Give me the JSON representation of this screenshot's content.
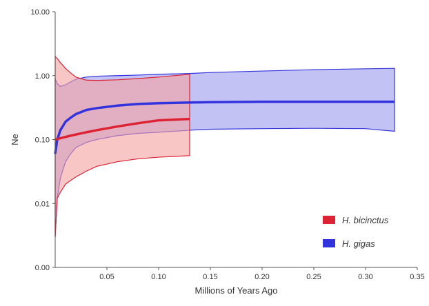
{
  "chart_data": {
    "type": "area",
    "title": "",
    "xlabel": "Millions of Years Ago",
    "ylabel": "Ne",
    "xlim": [
      0,
      0.35
    ],
    "ylim": [
      0.001,
      10
    ],
    "yscale": "log",
    "xticks": [
      {
        "value": 0.05,
        "label": "0.05"
      },
      {
        "value": 0.1,
        "label": "0.10"
      },
      {
        "value": 0.15,
        "label": "0.15"
      },
      {
        "value": 0.2,
        "label": "0.20"
      },
      {
        "value": 0.25,
        "label": "0.25"
      },
      {
        "value": 0.3,
        "label": "0.30"
      },
      {
        "value": 0.35,
        "label": "0.35"
      }
    ],
    "yticks": [
      {
        "value": 0.001,
        "label": "0.00"
      },
      {
        "value": 0.01,
        "label": "0.01"
      },
      {
        "value": 0.1,
        "label": "0.10"
      },
      {
        "value": 1,
        "label": "1.00"
      },
      {
        "value": 10,
        "label": "10.00"
      }
    ],
    "grid": false,
    "legend_position": "bottom-right",
    "series": [
      {
        "name": "H. gigas",
        "color": "#3333dd",
        "fill": "#9999ee",
        "x": [
          0,
          0.002,
          0.005,
          0.01,
          0.015,
          0.02,
          0.03,
          0.04,
          0.06,
          0.08,
          0.1,
          0.13,
          0.15,
          0.2,
          0.25,
          0.3,
          0.328
        ],
        "median": [
          0.06,
          0.1,
          0.14,
          0.19,
          0.22,
          0.25,
          0.29,
          0.31,
          0.34,
          0.36,
          0.37,
          0.38,
          0.385,
          0.39,
          0.39,
          0.39,
          0.39
        ],
        "upper": [
          0.9,
          0.75,
          0.68,
          0.72,
          0.8,
          0.88,
          0.95,
          0.98,
          1.0,
          1.02,
          1.05,
          1.08,
          1.12,
          1.18,
          1.24,
          1.28,
          1.3
        ],
        "lower": [
          0.003,
          0.012,
          0.025,
          0.045,
          0.06,
          0.075,
          0.09,
          0.1,
          0.115,
          0.125,
          0.13,
          0.14,
          0.145,
          0.148,
          0.15,
          0.148,
          0.135
        ]
      },
      {
        "name": "H. bicinctus",
        "color": "#dd2233",
        "fill": "#f5a0a0",
        "x": [
          0,
          0.002,
          0.005,
          0.01,
          0.015,
          0.02,
          0.03,
          0.04,
          0.06,
          0.08,
          0.1,
          0.13
        ],
        "median": [
          0.1,
          0.102,
          0.105,
          0.11,
          0.115,
          0.12,
          0.13,
          0.14,
          0.16,
          0.18,
          0.2,
          0.21
        ],
        "upper": [
          2.0,
          1.85,
          1.6,
          1.3,
          1.1,
          0.95,
          0.85,
          0.84,
          0.86,
          0.9,
          0.95,
          1.05
        ],
        "lower": [
          0.003,
          0.012,
          0.015,
          0.02,
          0.023,
          0.026,
          0.032,
          0.038,
          0.045,
          0.05,
          0.053,
          0.056
        ]
      }
    ]
  }
}
